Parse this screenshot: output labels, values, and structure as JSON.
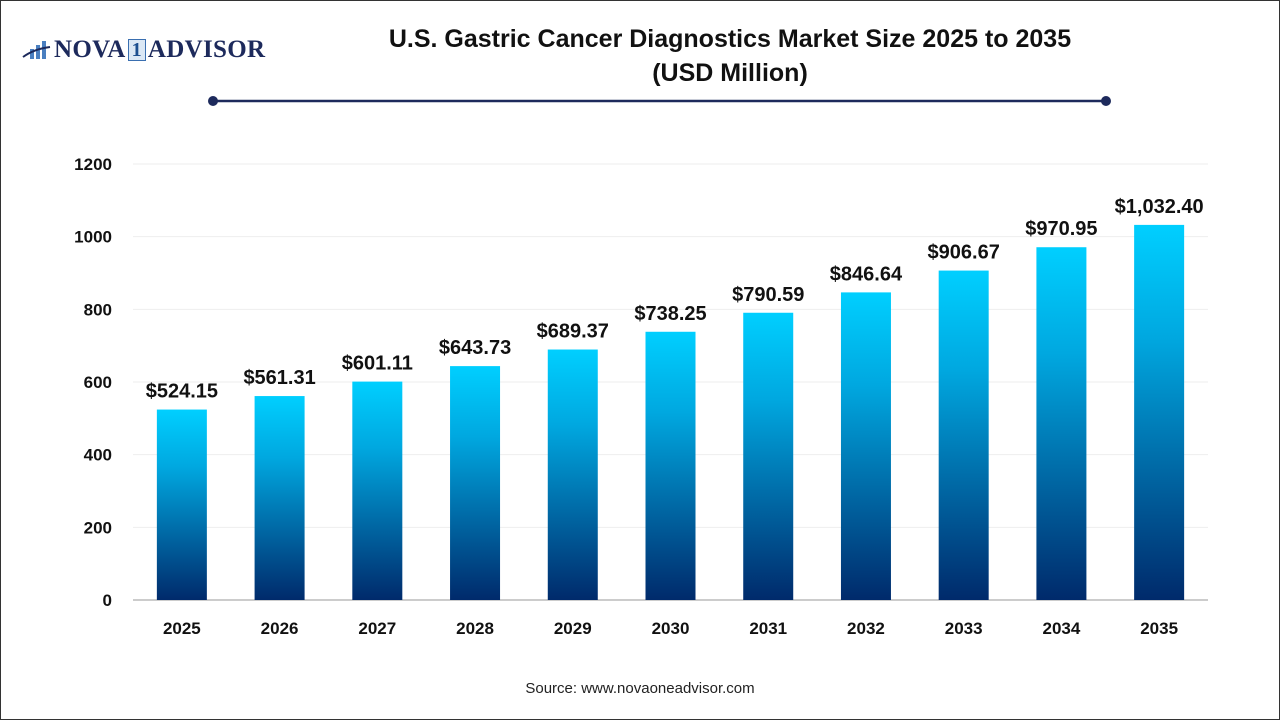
{
  "logo": {
    "text_left": "NOVA",
    "text_one": "1",
    "text_right": "ADVISOR"
  },
  "title_line1": "U.S. Gastric Cancer Diagnostics Market Size 2025 to 2035",
  "title_line2": "(USD Million)",
  "source": "Source: www.novaoneadvisor.com",
  "colors": {
    "bar_top": "#00cfff",
    "bar_bottom": "#002a6b",
    "title_rule": "#1d2a5c"
  },
  "chart_data": {
    "type": "bar",
    "title": "U.S. Gastric Cancer Diagnostics Market Size 2025 to 2035 (USD Million)",
    "xlabel": "",
    "ylabel": "",
    "categories": [
      "2025",
      "2026",
      "2027",
      "2028",
      "2029",
      "2030",
      "2031",
      "2032",
      "2033",
      "2034",
      "2035"
    ],
    "values": [
      524.15,
      561.31,
      601.11,
      643.73,
      689.37,
      738.25,
      790.59,
      846.64,
      906.67,
      970.95,
      1032.4
    ],
    "data_labels": [
      "$524.15",
      "$561.31",
      "$601.11",
      "$643.73",
      "$689.37",
      "$738.25",
      "$790.59",
      "$846.64",
      "$906.67",
      "$970.95",
      "$1,032.40"
    ],
    "ylim": [
      0,
      1200
    ],
    "yticks": [
      0,
      200,
      400,
      600,
      800,
      1000,
      1200
    ],
    "grid": true,
    "legend": "none"
  }
}
